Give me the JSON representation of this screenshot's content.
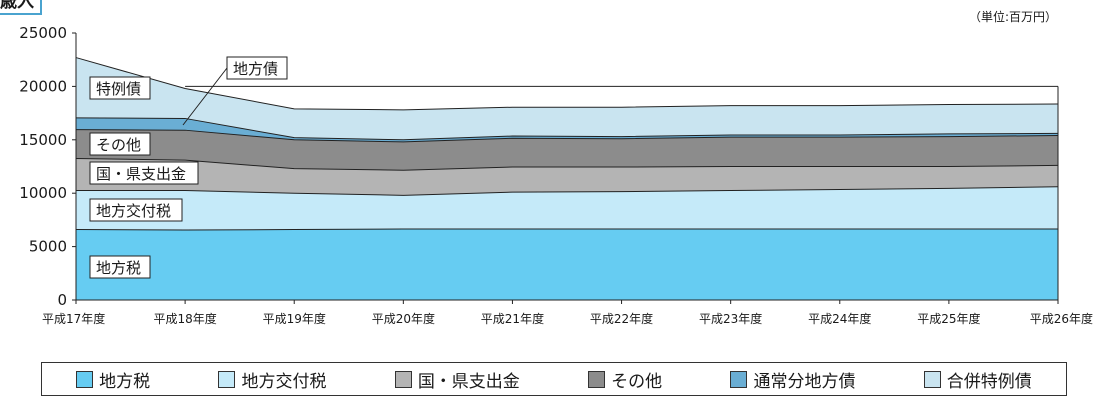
{
  "header": {
    "title_fragment": "歳入",
    "unit": "（単位:百万円）"
  },
  "colors": {
    "地方税": "#66ccf2",
    "地方交付税": "#c5eaf9",
    "国・県支出金": "#b4b4b4",
    "その他": "#8c8c8c",
    "通常分地方債": "#6aaed4",
    "合併特例債": "#c9e4f0"
  },
  "legend": [
    {
      "label": "地方税",
      "key": "地方税"
    },
    {
      "label": "地方交付税",
      "key": "地方交付税"
    },
    {
      "label": "国・県支出金",
      "key": "国・県支出金"
    },
    {
      "label": "その他",
      "key": "その他"
    },
    {
      "label": "通常分地方債",
      "key": "通常分地方債"
    },
    {
      "label": "合併特例債",
      "key": "合併特例債"
    }
  ],
  "chart_data": {
    "type": "area",
    "stacked": true,
    "categories": [
      "平成17年度",
      "平成18年度",
      "平成19年度",
      "平成20年度",
      "平成21年度",
      "平成22年度",
      "平成23年度",
      "平成24年度",
      "平成25年度",
      "平成26年度"
    ],
    "ylim": [
      0,
      25000
    ],
    "yticks": [
      0,
      5000,
      10000,
      15000,
      20000,
      25000
    ],
    "reference_line": 20000,
    "series": [
      {
        "name": "地方税",
        "key": "地方税",
        "values": [
          6600,
          6550,
          6600,
          6650,
          6650,
          6650,
          6650,
          6650,
          6650,
          6650
        ]
      },
      {
        "name": "地方交付税",
        "key": "地方交付税",
        "values": [
          3650,
          3700,
          3400,
          3150,
          3450,
          3500,
          3600,
          3700,
          3800,
          3950
        ]
      },
      {
        "name": "国・県支出金",
        "key": "国・県支出金",
        "values": [
          3000,
          2850,
          2300,
          2350,
          2350,
          2300,
          2250,
          2150,
          2050,
          2000
        ]
      },
      {
        "name": "その他",
        "key": "その他",
        "values": [
          2700,
          2800,
          2700,
          2650,
          2700,
          2650,
          2750,
          2750,
          2800,
          2800
        ]
      },
      {
        "name": "通常分地方債",
        "key": "通常分地方債",
        "values": [
          1100,
          1100,
          200,
          200,
          200,
          200,
          200,
          200,
          250,
          200
        ]
      },
      {
        "name": "合併特例債",
        "key": "合併特例債",
        "values": [
          5650,
          2800,
          2700,
          2800,
          2700,
          2750,
          2750,
          2750,
          2750,
          2750
        ]
      }
    ],
    "annotations": [
      "特例債",
      "地方債",
      "その他",
      "国・県支出金",
      "地方交付税",
      "地方税"
    ]
  }
}
